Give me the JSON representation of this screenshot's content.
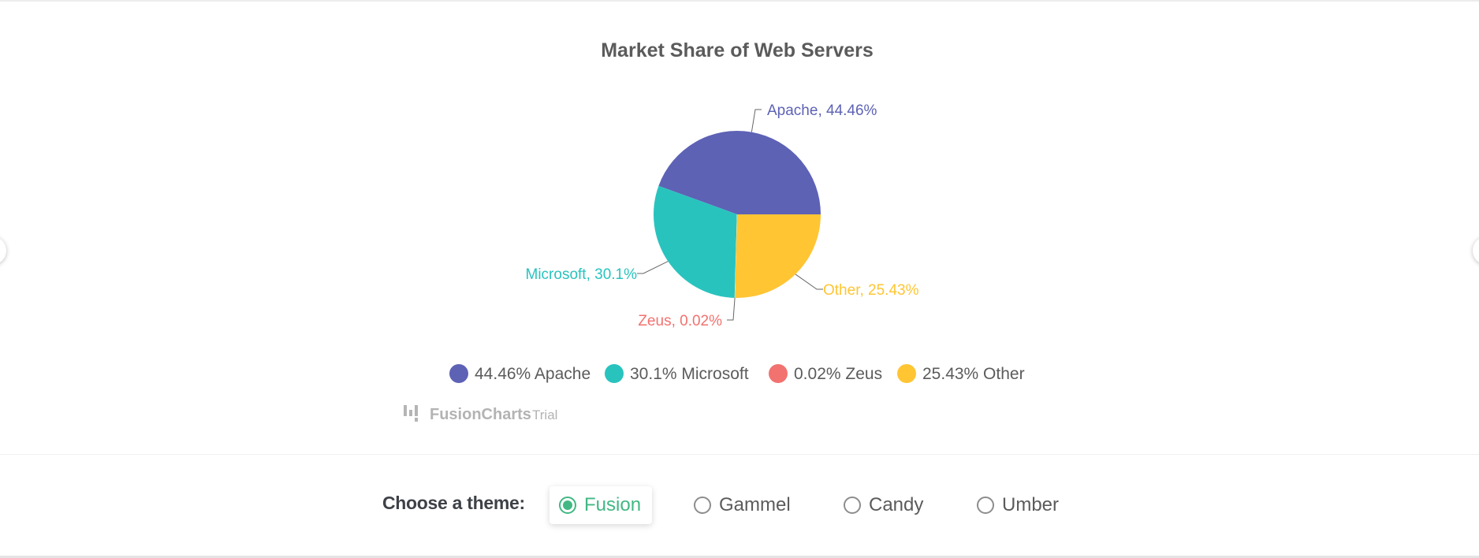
{
  "chart_data": {
    "type": "pie",
    "title": "Market Share of Web Servers",
    "slices": [
      {
        "label": "Apache",
        "value": 44.46,
        "color": "#5d62b5",
        "data_label": "Apache, 44.46%",
        "legend_label": "44.46% Apache"
      },
      {
        "label": "Microsoft",
        "value": 30.1,
        "color": "#29c3be",
        "data_label": "Microsoft, 30.1%",
        "legend_label": "30.1% Microsoft"
      },
      {
        "label": "Zeus",
        "value": 0.02,
        "color": "#f2726f",
        "data_label": "Zeus, 0.02%",
        "legend_label": "0.02% Zeus"
      },
      {
        "label": "Other",
        "value": 25.43,
        "color": "#ffc533",
        "data_label": "Other, 25.43%",
        "legend_label": "25.43% Other"
      }
    ],
    "legend_position": "bottom"
  },
  "watermark": {
    "brand": "FusionCharts",
    "suffix": "Trial"
  },
  "theme_selector": {
    "label": "Choose a theme:",
    "options": [
      {
        "label": "Fusion",
        "selected": true
      },
      {
        "label": "Gammel",
        "selected": false
      },
      {
        "label": "Candy",
        "selected": false
      },
      {
        "label": "Umber",
        "selected": false
      }
    ],
    "accent_color": "#41b883"
  }
}
